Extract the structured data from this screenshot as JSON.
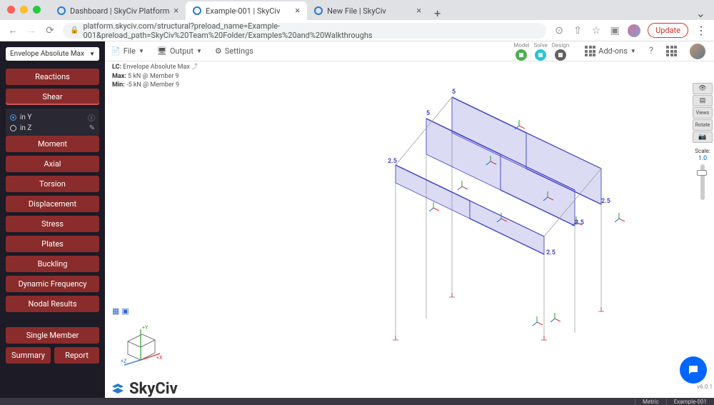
{
  "browser": {
    "tabs": [
      {
        "title": "Dashboard | SkyCiv Platform",
        "active": false
      },
      {
        "title": "Example-001 | SkyCiv",
        "active": true
      },
      {
        "title": "New File | SkyCiv",
        "active": false
      }
    ],
    "url": "platform.skyciv.com/structural?preload_name=Example-001&preload_path=SkyCiv%20Team%20Folder/Examples%20and%20Walkthroughs",
    "update_label": "Update"
  },
  "toolbar": {
    "file": "File",
    "output": "Output",
    "settings": "Settings",
    "mini": [
      {
        "label": "Model",
        "color": "#4caf50"
      },
      {
        "label": "Solve",
        "color": "#26c6da"
      },
      {
        "label": "Design",
        "color": "#616161"
      }
    ],
    "addons": "Add-ons"
  },
  "sidebar": {
    "dropdown_label": "Envelope Absolute Max",
    "buttons": [
      "Reactions",
      "Shear",
      "Moment",
      "Axial",
      "Torsion",
      "Displacement",
      "Stress",
      "Plates",
      "Buckling",
      "Dynamic Frequency",
      "Nodal Results"
    ],
    "shear_active_index": 1,
    "axis": {
      "y_label": "in Y",
      "z_label": "in Z"
    },
    "single_member": "Single Member",
    "summary": "Summary",
    "report": "Report"
  },
  "lc_info": {
    "lc_label": "LC:",
    "lc_value": "Envelope Absolute Max",
    "max_label": "Max:",
    "max_value": "5 kN @ Member 9",
    "min_label": "Min:",
    "min_value": "-5 kN @ Member 9"
  },
  "right_toolbar": {
    "views": "Views",
    "rotate": "Rotate",
    "scale_label": "Scale:",
    "scale_value": "1.0"
  },
  "logo_text": "SkyCiv",
  "footer": {
    "units": "Metric",
    "file": "Example-001"
  },
  "version": "v6.0.1",
  "viz": {
    "value_labels": [
      "5",
      "5",
      "2.5",
      "2.5",
      "2.5",
      "2.5"
    ],
    "label_color": "#3838d0",
    "fill_color": "rgba(110,110,210,0.25)",
    "stroke_color": "#4545c8",
    "frame_color": "#a0a0a0"
  }
}
